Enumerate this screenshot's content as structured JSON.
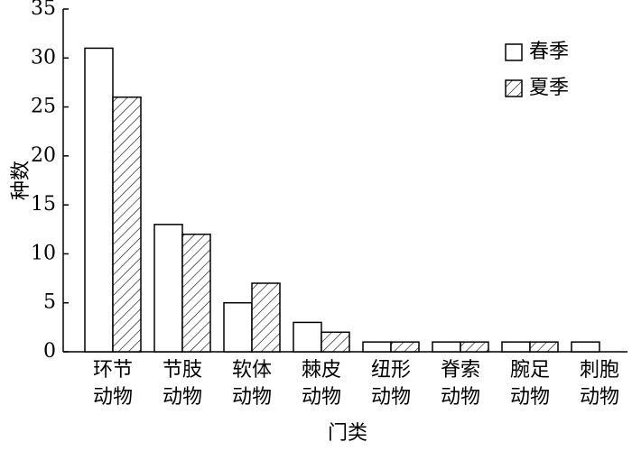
{
  "chart_data": {
    "type": "bar",
    "x_label": "门类",
    "y_label": "种数",
    "categories": [
      "环节动物",
      "节肢动物",
      "软体动物",
      "棘皮动物",
      "纽形动物",
      "脊索动物",
      "腕足动物",
      "刺胞动物"
    ],
    "series": [
      {
        "name": "春季",
        "color": "#ffffff",
        "hatch": false,
        "values": [
          31,
          13,
          5,
          3,
          1,
          1,
          1,
          1
        ]
      },
      {
        "name": "夏季",
        "color": "#ffffff",
        "hatch": true,
        "values": [
          26,
          12,
          7,
          2,
          1,
          1,
          1,
          0
        ]
      }
    ],
    "ylim": [
      0,
      35
    ],
    "yticks": [
      0,
      5,
      10,
      15,
      20,
      25,
      30,
      35
    ],
    "legend": "upper right"
  }
}
